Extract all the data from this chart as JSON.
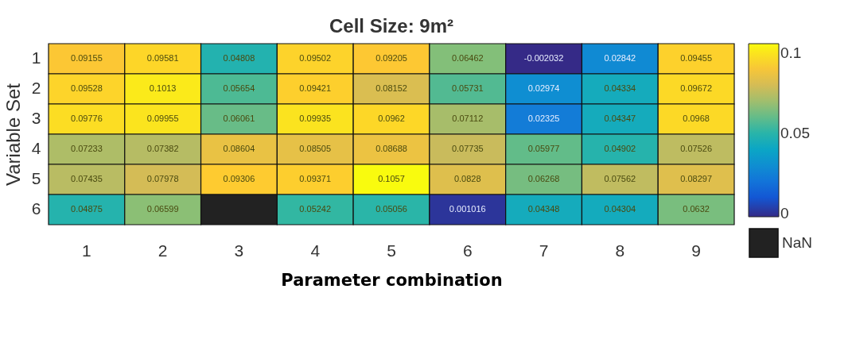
{
  "chart_data": {
    "type": "heatmap",
    "title": "Cell Size: 9m²",
    "xlabel": "Parameter combination",
    "ylabel": "Variable Set",
    "categories": [
      "1",
      "2",
      "3",
      "4",
      "5",
      "6",
      "7",
      "8",
      "9"
    ],
    "y_categories": [
      "1",
      "2",
      "3",
      "4",
      "5",
      "6"
    ],
    "cells": [
      [
        0.09155,
        0.09581,
        0.04808,
        0.09502,
        0.09205,
        0.06462,
        -0.002032,
        0.02842,
        0.09455
      ],
      [
        0.09528,
        0.1013,
        0.05654,
        0.09421,
        0.08152,
        0.05731,
        0.02974,
        0.04334,
        0.09672
      ],
      [
        0.09776,
        0.09955,
        0.06061,
        0.09935,
        0.0962,
        0.07112,
        0.02325,
        0.04347,
        0.0968
      ],
      [
        0.07233,
        0.07382,
        0.08604,
        0.08505,
        0.08688,
        0.07735,
        0.05977,
        0.04902,
        0.07526
      ],
      [
        0.07435,
        0.07978,
        0.09306,
        0.09371,
        0.1057,
        0.0828,
        0.06268,
        0.07562,
        0.08297
      ],
      [
        0.04875,
        0.06599,
        null,
        0.05242,
        0.05056,
        0.001016,
        0.04348,
        0.04304,
        0.0632
      ]
    ],
    "data_labels": true,
    "clim": [
      -0.002032,
      0.1057
    ],
    "cticks": [
      0,
      0.05,
      0.1
    ],
    "annotations": [
      "NaN"
    ]
  }
}
